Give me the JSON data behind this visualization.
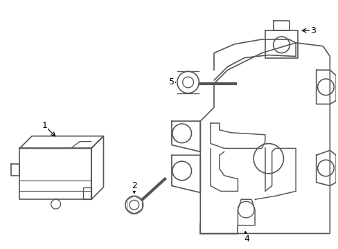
{
  "background_color": "#ffffff",
  "line_color": "#555555",
  "label_color": "#000000",
  "fig_width": 4.89,
  "fig_height": 3.6,
  "dpi": 100
}
